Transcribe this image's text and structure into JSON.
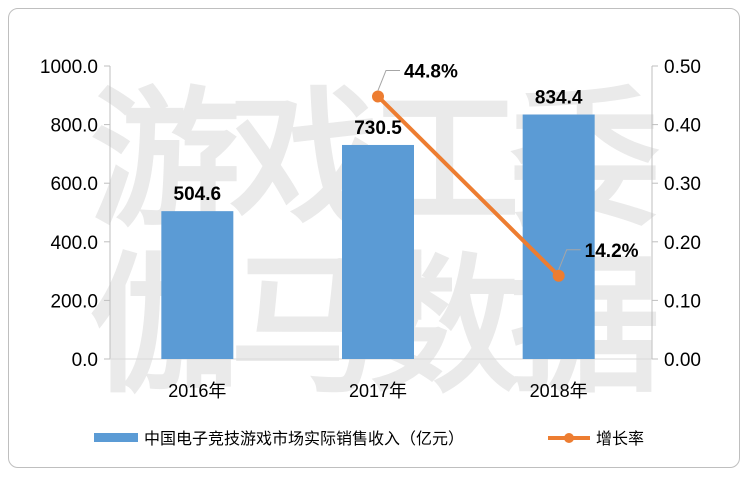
{
  "chart_data": {
    "type": "bar+line",
    "categories": [
      "2016年",
      "2017年",
      "2018年"
    ],
    "bars": {
      "name": "中国电子竞技游戏市场实际销售收入（亿元）",
      "values": [
        504.6,
        730.5,
        834.4
      ],
      "labels": [
        "504.6",
        "730.5",
        "834.4"
      ],
      "color": "#5b9bd5",
      "axis": "left"
    },
    "line": {
      "name": "增长率",
      "values": [
        null,
        0.448,
        0.142
      ],
      "labels": [
        "",
        "44.8%",
        "14.2%"
      ],
      "color": "#ed7d31",
      "axis": "right"
    },
    "left_axis": {
      "ylim": [
        0,
        1000
      ],
      "ticks": [
        "0.0",
        "200.0",
        "400.0",
        "600.0",
        "800.0",
        "1000.0"
      ]
    },
    "right_axis": {
      "ylim": [
        0,
        0.5
      ],
      "ticks": [
        "0.00",
        "0.10",
        "0.20",
        "0.30",
        "0.40",
        "0.50"
      ]
    },
    "legend_position": "bottom",
    "grid": false,
    "watermark": [
      "游戏工委",
      "伽马数据"
    ]
  }
}
